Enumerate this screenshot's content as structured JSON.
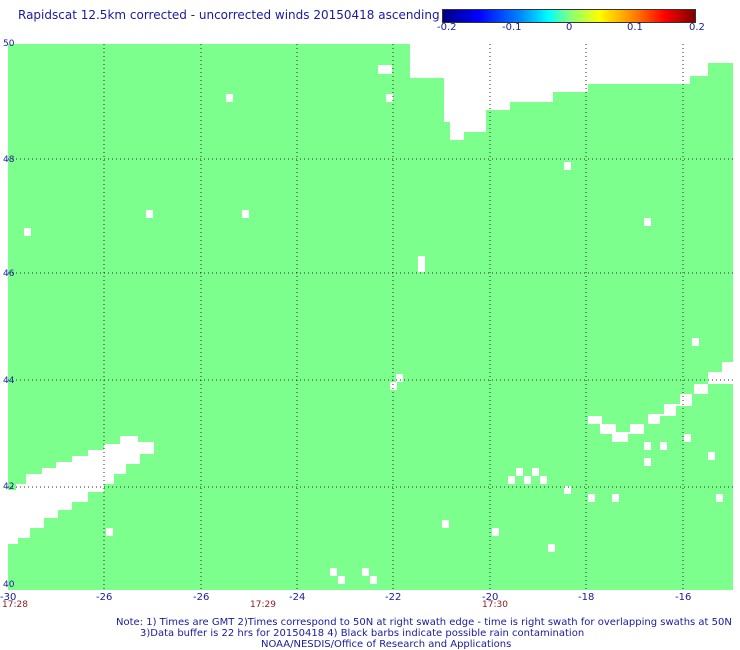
{
  "title": "Rapidscat 12.5km corrected - uncorrected winds 20150418 ascending",
  "colorbar": {
    "ticks": [
      "-0.2",
      "-0.1",
      "0",
      "0.1",
      "0.2"
    ],
    "colors": [
      "#000080",
      "#0000ff",
      "#00ffff",
      "#80ff80",
      "#ffff00",
      "#ff8000",
      "#ff0000",
      "#800000"
    ]
  },
  "map": {
    "fill_color": "#7dff8d",
    "gap_color": "#ffffff",
    "grid": "dotted",
    "lat_ticks": [
      "50",
      "48",
      "46",
      "44",
      "42",
      "40"
    ],
    "lon_ticks": [
      "-30",
      "-26",
      "-26",
      "-24",
      "-22",
      "-20",
      "-18",
      "-16"
    ],
    "time_labels": [
      "17:28",
      "17:29",
      "17:30"
    ]
  },
  "footer": {
    "note_line1": "Note: 1) Times are GMT 2)Times correspond to 50N at right swath edge - time is right swath for overlapping swaths at 50N",
    "note_line2": "3)Data buffer is 22 hrs for 20150418 4) Black barbs indicate possible rain contamination",
    "note_line3": "NOAA/NESDIS/Office of Research and Applications"
  }
}
